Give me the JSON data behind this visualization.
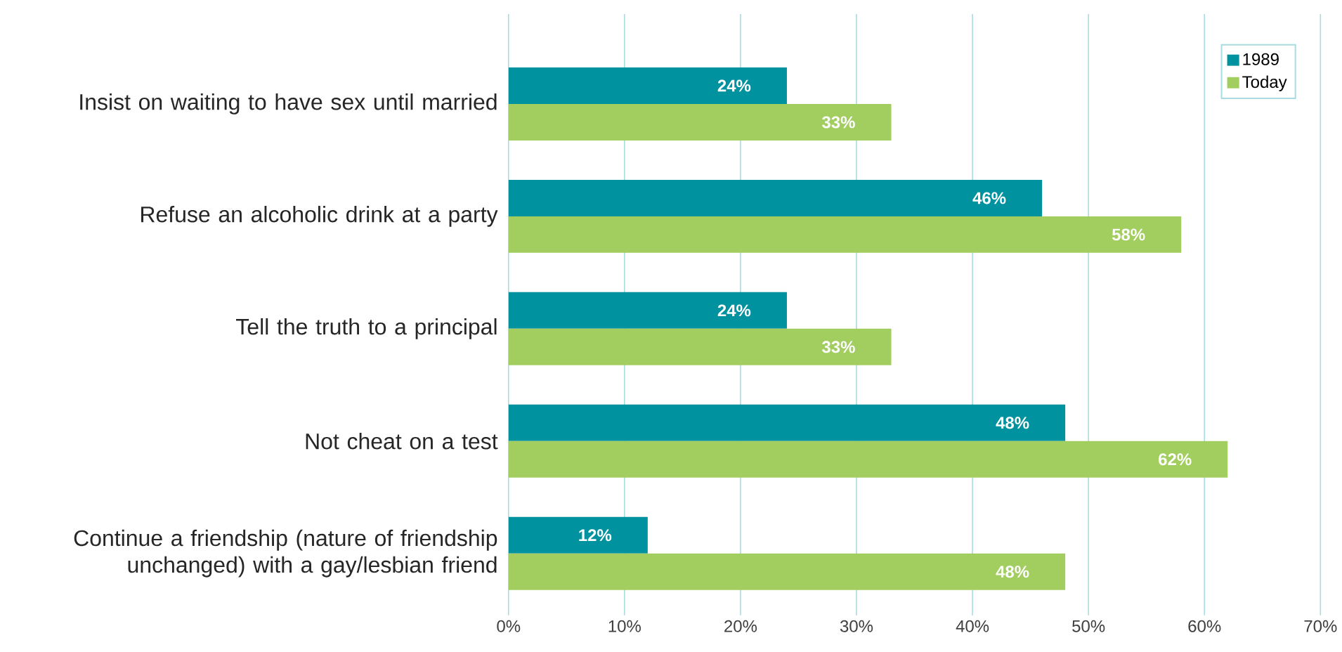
{
  "chart_data": {
    "type": "bar",
    "orientation": "horizontal",
    "categories": [
      "Insist on waiting to have sex until married",
      "Refuse an alcoholic drink at a party",
      "Tell the truth to a principal",
      "Not cheat on a test",
      "Continue a friendship (nature of friendship unchanged) with a gay/lesbian friend"
    ],
    "series": [
      {
        "name": "1989",
        "color": "#00929f",
        "values": [
          24,
          46,
          24,
          48,
          12
        ],
        "value_labels": [
          "24%",
          "46%",
          "24%",
          "48%",
          "12%"
        ]
      },
      {
        "name": "Today",
        "color": "#a2cd5f",
        "values": [
          33,
          58,
          33,
          62,
          48
        ],
        "value_labels": [
          "33%",
          "58%",
          "33%",
          "62%",
          "48%"
        ]
      }
    ],
    "xlim": [
      0,
      70
    ],
    "xticks": [
      {
        "value": 0,
        "label": "0%"
      },
      {
        "value": 10,
        "label": "10%"
      },
      {
        "value": 20,
        "label": "20%"
      },
      {
        "value": 30,
        "label": "30%"
      },
      {
        "value": 40,
        "label": "40%"
      },
      {
        "value": 50,
        "label": "50%"
      },
      {
        "value": 60,
        "label": "60%"
      },
      {
        "value": 70,
        "label": "70%"
      }
    ],
    "grid": "x",
    "legend": "top right"
  }
}
